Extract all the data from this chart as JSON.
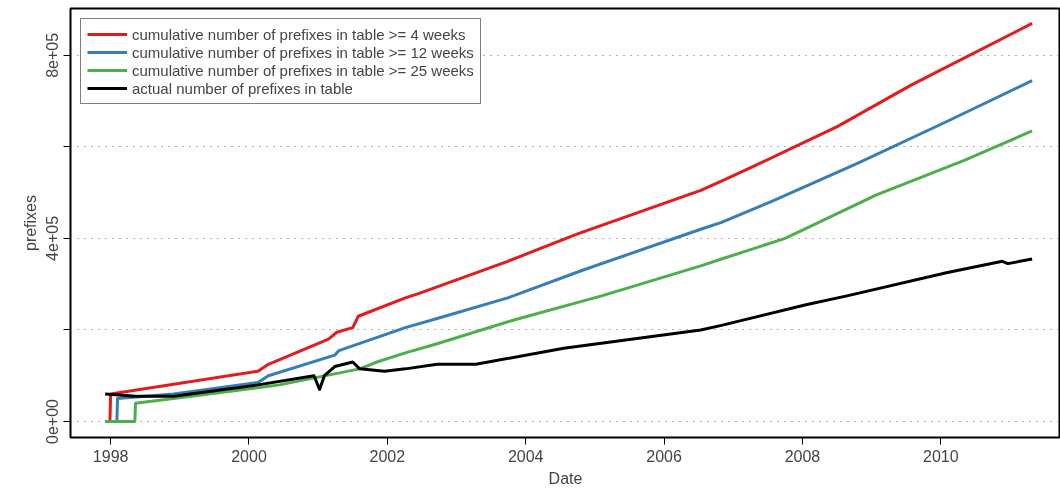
{
  "chart_data": {
    "type": "line",
    "xlabel": "Date",
    "ylabel": "prefixes",
    "xlim": [
      1997.42,
      2011.73
    ],
    "xticks": [
      1998,
      2000,
      2002,
      2004,
      2006,
      2008,
      2010
    ],
    "ylim": [
      -35000,
      902500
    ],
    "yticks": [
      {
        "value": 0,
        "label": "0e+00"
      },
      {
        "value": 200000,
        "label": null
      },
      {
        "value": 400000,
        "label": "4e+05"
      },
      {
        "value": 600000,
        "label": null
      },
      {
        "value": 800000,
        "label": "8e+05"
      }
    ],
    "grid": "y",
    "legend": "top left",
    "line_style": "solid",
    "series": [
      {
        "name": "cumulative number of prefixes in table >= 4 weeks",
        "color": "#e41a1c",
        "x": [
          1997.92,
          1997.99,
          1998.0,
          2000.13,
          2000.28,
          2001.15,
          2001.27,
          2001.5,
          2001.58,
          2002.26,
          2002.46,
          2003.74,
          2004.75,
          2006.53,
          2006.83,
          2007.33,
          2008.51,
          2009.57,
          2011.32
        ],
        "values": [
          0,
          0,
          60000,
          110000,
          125000,
          180000,
          195000,
          205000,
          230000,
          270000,
          280000,
          350000,
          410000,
          505000,
          525000,
          560000,
          645000,
          735000,
          870000
        ]
      },
      {
        "name": "cumulative number of prefixes in table >= 12 weeks",
        "color": "#377eb8",
        "x": [
          1997.92,
          1998.09,
          1998.1,
          1998.91,
          2000.13,
          2000.28,
          2001.24,
          2001.3,
          2002.26,
          2002.72,
          2003.74,
          2004.81,
          2006.53,
          2006.83,
          2007.54,
          2008.81,
          2010.08,
          2011.32
        ],
        "values": [
          0,
          0,
          50000,
          60000,
          85000,
          100000,
          145000,
          155000,
          205000,
          225000,
          270000,
          330000,
          420000,
          435000,
          480000,
          565000,
          655000,
          745000
        ]
      },
      {
        "name": "cumulative number of prefixes in table >= 25 weeks",
        "color": "#4daf4a",
        "x": [
          1997.92,
          1998.35,
          1998.36,
          1998.91,
          2000.44,
          2001.6,
          2001.85,
          2002.26,
          2002.72,
          2003.79,
          2005.11,
          2006.53,
          2006.83,
          2007.75,
          2009.07,
          2010.33,
          2011.32
        ],
        "values": [
          0,
          0,
          40000,
          50000,
          80000,
          115000,
          130000,
          150000,
          170000,
          220000,
          275000,
          340000,
          355000,
          400000,
          495000,
          570000,
          635000
        ]
      },
      {
        "name": "actual number of prefixes in table",
        "color": "#000000",
        "x": [
          1997.92,
          1998.36,
          1998.91,
          2000.13,
          2000.94,
          2001.02,
          2001.09,
          2001.24,
          2001.5,
          2001.6,
          2001.96,
          2002.26,
          2002.72,
          2003.28,
          2004.55,
          2006.53,
          2006.83,
          2008.05,
          2008.66,
          2010.08,
          2010.89,
          2010.97,
          2011.32
        ],
        "values": [
          60000,
          55000,
          55000,
          80000,
          100000,
          70000,
          100000,
          120000,
          130000,
          115000,
          110000,
          115000,
          125000,
          125000,
          160000,
          200000,
          210000,
          255000,
          275000,
          325000,
          350000,
          345000,
          355000
        ]
      }
    ]
  }
}
